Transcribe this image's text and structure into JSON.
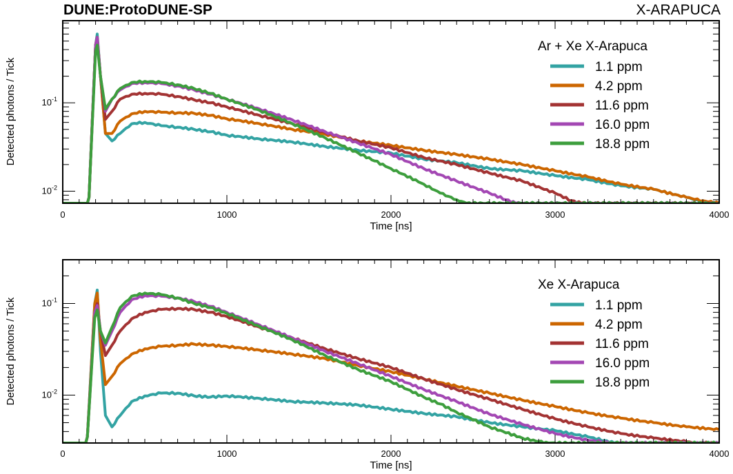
{
  "header": {
    "experiment": "DUNE:ProtoDUNE-SP",
    "detector": "X-ARAPUCA"
  },
  "colors": {
    "1.1 ppm": "#33a3a3",
    "4.2 ppm": "#cc6600",
    "11.6 ppm": "#a33333",
    "16.0 ppm": "#a347b3",
    "18.8 ppm": "#3d9e3d"
  },
  "chart_data": [
    {
      "type": "line",
      "legend_title": "Ar + Xe X-Arapuca",
      "xlabel": "Time [ns]",
      "ylabel": "Detected photons / Tick",
      "xlim": [
        0,
        4000
      ],
      "ylim": [
        0.0073,
        0.85
      ],
      "yscale": "log",
      "xticks": [
        "0",
        "1000",
        "2000",
        "3000",
        "4000"
      ],
      "yticks": [
        {
          "value": 0.1,
          "label": "10^-1"
        },
        {
          "value": 0.01,
          "label": "10^-2"
        }
      ],
      "legend_position": "top-right",
      "series": [
        {
          "name": "1.1 ppm",
          "x": [
            0,
            150,
            160,
            200,
            210,
            230,
            260,
            300,
            350,
            420,
            500,
            600,
            700,
            800,
            900,
            1000,
            1200,
            1400,
            1600,
            1800,
            2000,
            2200,
            2400,
            2600,
            2800,
            3000,
            3200,
            3400,
            3600,
            3800,
            3900,
            4000
          ],
          "y": [
            0.0073,
            0.0073,
            0.0085,
            0.45,
            0.6,
            0.2,
            0.045,
            0.037,
            0.045,
            0.058,
            0.06,
            0.055,
            0.053,
            0.05,
            0.047,
            0.043,
            0.039,
            0.036,
            0.032,
            0.029,
            0.027,
            0.023,
            0.021,
            0.018,
            0.017,
            0.015,
            0.0135,
            0.0115,
            0.0105,
            0.0085,
            0.0076,
            0.0073
          ]
        },
        {
          "name": "4.2 ppm",
          "x": [
            0,
            150,
            160,
            200,
            210,
            230,
            260,
            300,
            350,
            420,
            500,
            600,
            700,
            800,
            900,
            1000,
            1200,
            1400,
            1600,
            1800,
            2000,
            2200,
            2400,
            2600,
            2800,
            3000,
            3200,
            3400,
            3600,
            3800,
            3900,
            4000
          ],
          "y": [
            0.0073,
            0.0073,
            0.0085,
            0.45,
            0.55,
            0.2,
            0.045,
            0.045,
            0.062,
            0.075,
            0.08,
            0.078,
            0.077,
            0.076,
            0.072,
            0.066,
            0.058,
            0.05,
            0.044,
            0.037,
            0.033,
            0.029,
            0.026,
            0.023,
            0.02,
            0.017,
            0.0145,
            0.012,
            0.0105,
            0.0085,
            0.0078,
            0.0073
          ]
        },
        {
          "name": "11.6 ppm",
          "x": [
            0,
            150,
            160,
            200,
            210,
            230,
            260,
            300,
            350,
            420,
            500,
            600,
            700,
            800,
            900,
            1000,
            1200,
            1400,
            1600,
            1800,
            2000,
            2200,
            2400,
            2600,
            2800,
            3000,
            3100,
            3160,
            4000
          ],
          "y": [
            0.0073,
            0.0073,
            0.0085,
            0.45,
            0.55,
            0.2,
            0.065,
            0.08,
            0.11,
            0.125,
            0.128,
            0.125,
            0.118,
            0.108,
            0.1,
            0.09,
            0.072,
            0.058,
            0.046,
            0.037,
            0.031,
            0.024,
            0.02,
            0.016,
            0.013,
            0.0095,
            0.0078,
            0.0073,
            0.0073
          ]
        },
        {
          "name": "16.0 ppm",
          "x": [
            0,
            150,
            160,
            200,
            210,
            230,
            260,
            300,
            350,
            420,
            500,
            600,
            700,
            800,
            900,
            1000,
            1200,
            1400,
            1600,
            1800,
            2000,
            2200,
            2400,
            2600,
            2700,
            2760,
            4000
          ],
          "y": [
            0.0073,
            0.0073,
            0.0085,
            0.45,
            0.55,
            0.2,
            0.08,
            0.11,
            0.14,
            0.165,
            0.17,
            0.165,
            0.155,
            0.14,
            0.125,
            0.11,
            0.085,
            0.064,
            0.047,
            0.035,
            0.026,
            0.018,
            0.013,
            0.0095,
            0.008,
            0.0073,
            0.0073
          ]
        },
        {
          "name": "18.8 ppm",
          "x": [
            0,
            150,
            160,
            200,
            210,
            230,
            260,
            300,
            350,
            420,
            500,
            600,
            700,
            800,
            900,
            1000,
            1200,
            1400,
            1600,
            1800,
            1900,
            2000,
            2200,
            2300,
            2400,
            2460,
            4000
          ],
          "y": [
            0.0073,
            0.0073,
            0.0085,
            0.38,
            0.45,
            0.2,
            0.085,
            0.11,
            0.145,
            0.17,
            0.175,
            0.17,
            0.16,
            0.145,
            0.128,
            0.11,
            0.082,
            0.058,
            0.04,
            0.027,
            0.022,
            0.018,
            0.012,
            0.0095,
            0.008,
            0.0073,
            0.0073
          ]
        }
      ]
    },
    {
      "type": "line",
      "legend_title": "Xe X-Arapuca",
      "xlabel": "Time [ns]",
      "ylabel": "Detected photons / Tick",
      "xlim": [
        0,
        4000
      ],
      "ylim": [
        0.003,
        0.3
      ],
      "yscale": "log",
      "xticks": [
        "0",
        "1000",
        "2000",
        "3000",
        "4000"
      ],
      "yticks": [
        {
          "value": 0.1,
          "label": "10^-1"
        },
        {
          "value": 0.01,
          "label": "10^-2"
        }
      ],
      "legend_position": "top-right",
      "series": [
        {
          "name": "1.1 ppm",
          "x": [
            0,
            140,
            150,
            195,
            210,
            230,
            260,
            300,
            350,
            420,
            500,
            600,
            700,
            800,
            900,
            1000,
            1200,
            1400,
            1600,
            1800,
            2000,
            2200,
            2400,
            2600,
            2800,
            3000,
            3200,
            3300,
            3360,
            4000
          ],
          "y": [
            0.003,
            0.003,
            0.0035,
            0.1,
            0.14,
            0.03,
            0.006,
            0.0045,
            0.006,
            0.0085,
            0.0098,
            0.0105,
            0.0105,
            0.0098,
            0.0095,
            0.0098,
            0.0092,
            0.0085,
            0.0082,
            0.0078,
            0.007,
            0.0063,
            0.0058,
            0.005,
            0.0045,
            0.0041,
            0.0035,
            0.0032,
            0.003,
            0.003
          ]
        },
        {
          "name": "4.2 ppm",
          "x": [
            0,
            140,
            150,
            195,
            210,
            230,
            260,
            300,
            350,
            420,
            500,
            600,
            700,
            800,
            900,
            1000,
            1200,
            1400,
            1600,
            1800,
            2000,
            2200,
            2400,
            2600,
            2800,
            3000,
            3200,
            3400,
            3600,
            3800,
            4000
          ],
          "y": [
            0.003,
            0.003,
            0.0035,
            0.1,
            0.13,
            0.04,
            0.013,
            0.016,
            0.022,
            0.028,
            0.032,
            0.034,
            0.035,
            0.036,
            0.035,
            0.034,
            0.031,
            0.028,
            0.025,
            0.021,
            0.018,
            0.015,
            0.0125,
            0.0105,
            0.0088,
            0.0075,
            0.0064,
            0.0056,
            0.005,
            0.0045,
            0.0042
          ]
        },
        {
          "name": "11.6 ppm",
          "x": [
            0,
            140,
            150,
            195,
            210,
            230,
            260,
            300,
            350,
            420,
            500,
            600,
            700,
            800,
            900,
            1000,
            1200,
            1400,
            1600,
            1800,
            2000,
            2200,
            2400,
            2600,
            2800,
            3000,
            3200,
            3400,
            3600,
            3800,
            3840,
            4000
          ],
          "y": [
            0.003,
            0.003,
            0.0035,
            0.08,
            0.1,
            0.05,
            0.027,
            0.035,
            0.05,
            0.068,
            0.08,
            0.086,
            0.088,
            0.086,
            0.08,
            0.072,
            0.055,
            0.042,
            0.032,
            0.025,
            0.02,
            0.015,
            0.0115,
            0.009,
            0.007,
            0.0055,
            0.0045,
            0.0038,
            0.0034,
            0.0031,
            0.003,
            0.003
          ]
        },
        {
          "name": "16.0 ppm",
          "x": [
            0,
            140,
            150,
            195,
            210,
            230,
            260,
            300,
            350,
            420,
            500,
            600,
            700,
            800,
            900,
            1000,
            1200,
            1400,
            1600,
            1800,
            2000,
            2200,
            2400,
            2600,
            2800,
            3000,
            3200,
            3300,
            3350,
            4000
          ],
          "y": [
            0.003,
            0.003,
            0.0035,
            0.08,
            0.095,
            0.05,
            0.035,
            0.05,
            0.08,
            0.11,
            0.122,
            0.12,
            0.115,
            0.105,
            0.093,
            0.08,
            0.058,
            0.042,
            0.03,
            0.022,
            0.016,
            0.0115,
            0.0085,
            0.0062,
            0.0048,
            0.0038,
            0.0032,
            0.0031,
            0.003,
            0.003
          ]
        },
        {
          "name": "18.8 ppm",
          "x": [
            0,
            140,
            150,
            195,
            210,
            230,
            260,
            300,
            350,
            420,
            500,
            600,
            700,
            800,
            900,
            1000,
            1200,
            1400,
            1600,
            1800,
            2000,
            2200,
            2300,
            2400,
            2600,
            2800,
            2900,
            2960,
            4000
          ],
          "y": [
            0.003,
            0.003,
            0.0035,
            0.07,
            0.085,
            0.05,
            0.037,
            0.055,
            0.09,
            0.12,
            0.13,
            0.125,
            0.115,
            0.1,
            0.09,
            0.078,
            0.056,
            0.04,
            0.027,
            0.019,
            0.014,
            0.0095,
            0.008,
            0.0065,
            0.0045,
            0.0034,
            0.0031,
            0.003,
            0.003
          ]
        }
      ]
    }
  ]
}
